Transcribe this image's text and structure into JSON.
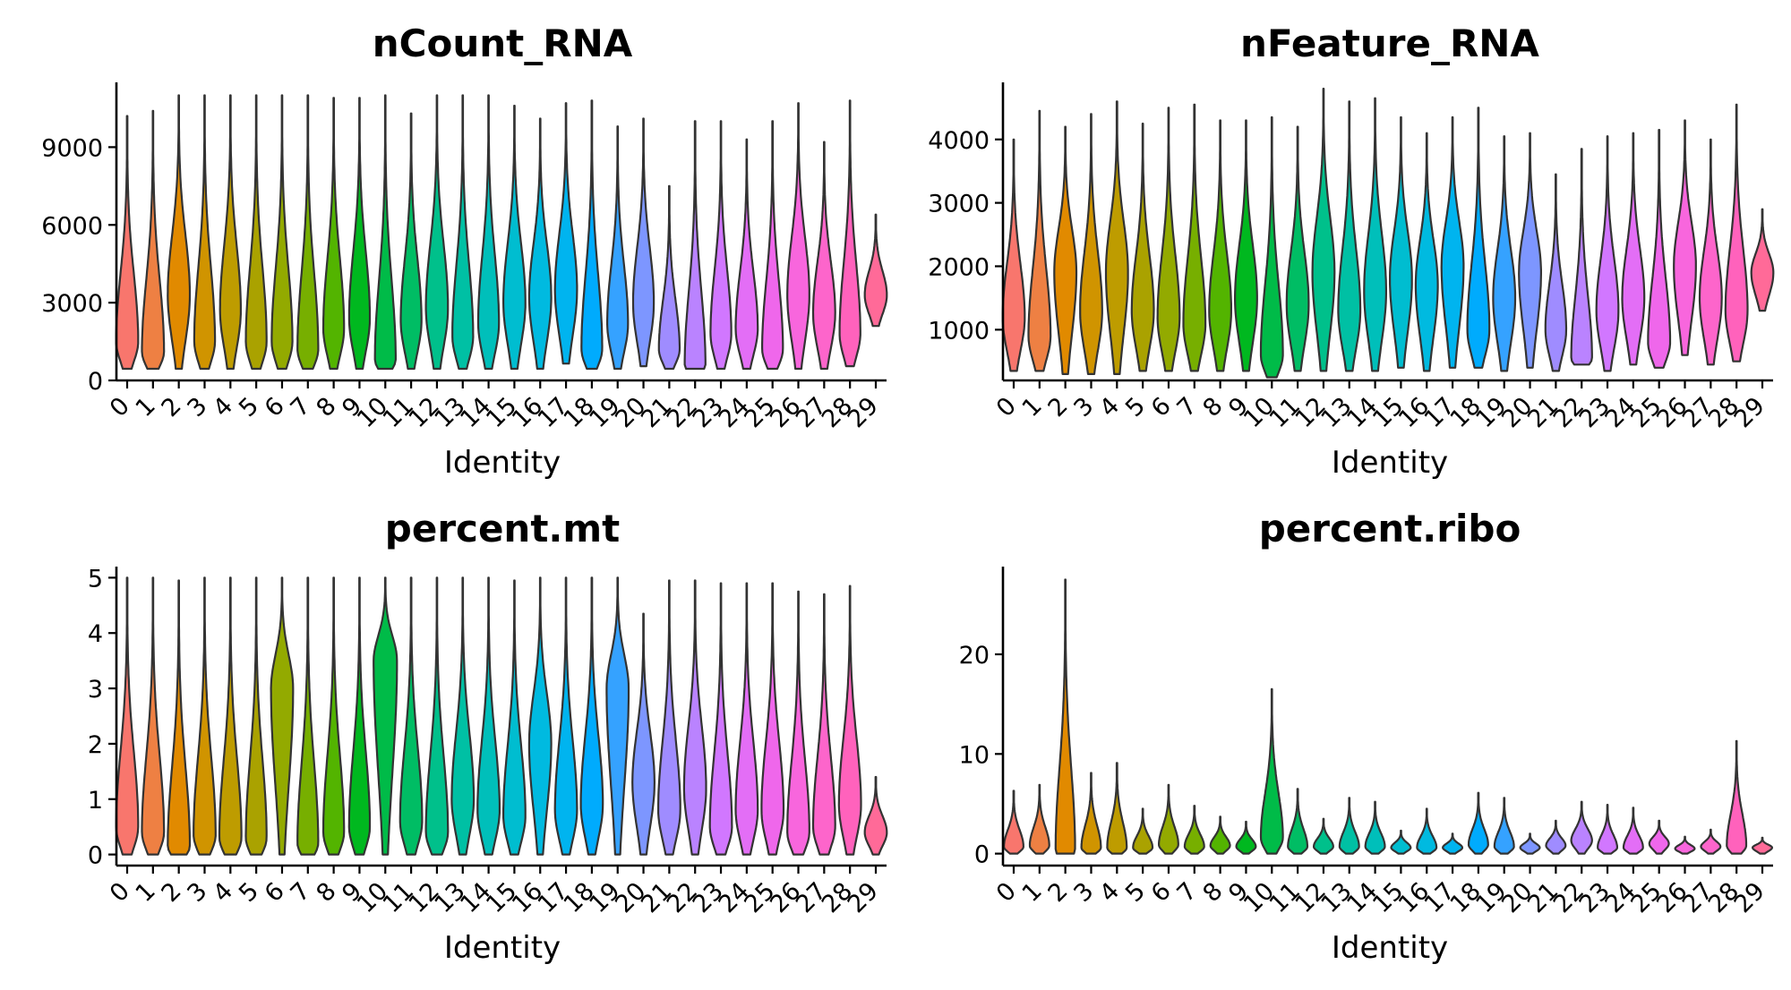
{
  "x_categories": [
    "0",
    "1",
    "2",
    "3",
    "4",
    "5",
    "6",
    "7",
    "8",
    "9",
    "10",
    "11",
    "12",
    "13",
    "14",
    "15",
    "16",
    "17",
    "18",
    "19",
    "20",
    "21",
    "22",
    "23",
    "24",
    "25",
    "26",
    "27",
    "28",
    "29"
  ],
  "colors": [
    "#F8766D",
    "#EE8043",
    "#E18A00",
    "#D09400",
    "#BE9C00",
    "#AAA200",
    "#93AA00",
    "#77AF00",
    "#53B400",
    "#00B81F",
    "#00BB48",
    "#00BD64",
    "#00C08B",
    "#00C0A4",
    "#00BFBA",
    "#00BDD0",
    "#00BAE0",
    "#00B4EF",
    "#00ABFD",
    "#35A2FF",
    "#7D96FF",
    "#9F8CFF",
    "#BA83FF",
    "#D177FF",
    "#E36EF6",
    "#EF67EB",
    "#F866DD",
    "#FD65CB",
    "#FF62BC",
    "#FF6A98"
  ],
  "chart_data": [
    {
      "type": "violin",
      "title": "nCount_RNA",
      "xlabel": "Identity",
      "ylabel": "",
      "ylim": [
        0,
        11500
      ],
      "yticks": [
        0,
        3000,
        6000,
        9000
      ],
      "series": [
        {
          "category": "0",
          "min": 450,
          "max": 10200,
          "peak": 1500,
          "pwidth": 0.85
        },
        {
          "category": "1",
          "min": 450,
          "max": 10400,
          "peak": 1100,
          "pwidth": 0.85
        },
        {
          "category": "2",
          "min": 450,
          "max": 11000,
          "peak": 3300,
          "pwidth": 0.85
        },
        {
          "category": "3",
          "min": 450,
          "max": 11000,
          "peak": 1500,
          "pwidth": 0.8
        },
        {
          "category": "4",
          "min": 450,
          "max": 11000,
          "peak": 2700,
          "pwidth": 0.8
        },
        {
          "category": "5",
          "min": 450,
          "max": 11000,
          "peak": 1500,
          "pwidth": 0.8
        },
        {
          "category": "6",
          "min": 450,
          "max": 11000,
          "peak": 1500,
          "pwidth": 0.8
        },
        {
          "category": "7",
          "min": 450,
          "max": 11000,
          "peak": 1200,
          "pwidth": 0.8
        },
        {
          "category": "8",
          "min": 450,
          "max": 10900,
          "peak": 2000,
          "pwidth": 0.8
        },
        {
          "category": "9",
          "min": 450,
          "max": 10900,
          "peak": 2400,
          "pwidth": 0.8
        },
        {
          "category": "10",
          "min": 450,
          "max": 11000,
          "peak": 800,
          "pwidth": 0.8
        },
        {
          "category": "11",
          "min": 450,
          "max": 10300,
          "peak": 2300,
          "pwidth": 0.8
        },
        {
          "category": "12",
          "min": 450,
          "max": 11000,
          "peak": 2800,
          "pwidth": 0.85
        },
        {
          "category": "13",
          "min": 450,
          "max": 11000,
          "peak": 1700,
          "pwidth": 0.8
        },
        {
          "category": "14",
          "min": 450,
          "max": 11000,
          "peak": 2200,
          "pwidth": 0.8
        },
        {
          "category": "15",
          "min": 450,
          "max": 10600,
          "peak": 3000,
          "pwidth": 0.85
        },
        {
          "category": "16",
          "min": 450,
          "max": 10100,
          "peak": 3200,
          "pwidth": 0.85
        },
        {
          "category": "17",
          "min": 650,
          "max": 10700,
          "peak": 3500,
          "pwidth": 0.85
        },
        {
          "category": "18",
          "min": 450,
          "max": 10800,
          "peak": 1200,
          "pwidth": 0.8
        },
        {
          "category": "19",
          "min": 450,
          "max": 9800,
          "peak": 2200,
          "pwidth": 0.8
        },
        {
          "category": "20",
          "min": 550,
          "max": 10100,
          "peak": 3000,
          "pwidth": 0.8
        },
        {
          "category": "21",
          "min": 450,
          "max": 7500,
          "peak": 1200,
          "pwidth": 0.8
        },
        {
          "category": "22",
          "min": 450,
          "max": 10000,
          "peak": 600,
          "pwidth": 0.8
        },
        {
          "category": "23",
          "min": 450,
          "max": 10000,
          "peak": 1800,
          "pwidth": 0.8
        },
        {
          "category": "24",
          "min": 450,
          "max": 9300,
          "peak": 2000,
          "pwidth": 0.85
        },
        {
          "category": "25",
          "min": 450,
          "max": 10000,
          "peak": 1200,
          "pwidth": 0.8
        },
        {
          "category": "26",
          "min": 450,
          "max": 10700,
          "peak": 3300,
          "pwidth": 0.85
        },
        {
          "category": "27",
          "min": 450,
          "max": 9200,
          "peak": 2600,
          "pwidth": 0.85
        },
        {
          "category": "28",
          "min": 550,
          "max": 10800,
          "peak": 1800,
          "pwidth": 0.8
        },
        {
          "category": "29",
          "min": 2100,
          "max": 6400,
          "peak": 3300,
          "pwidth": 0.85
        }
      ]
    },
    {
      "type": "violin",
      "title": "nFeature_RNA",
      "xlabel": "Identity",
      "ylabel": "",
      "ylim": [
        200,
        4900
      ],
      "yticks": [
        1000,
        2000,
        3000,
        4000
      ],
      "series": [
        {
          "category": "0",
          "min": 350,
          "max": 4000,
          "peak": 1200,
          "pwidth": 0.85
        },
        {
          "category": "1",
          "min": 350,
          "max": 4450,
          "peak": 900,
          "pwidth": 0.85
        },
        {
          "category": "2",
          "min": 300,
          "max": 4200,
          "peak": 1900,
          "pwidth": 0.85
        },
        {
          "category": "3",
          "min": 300,
          "max": 4400,
          "peak": 1300,
          "pwidth": 0.85
        },
        {
          "category": "4",
          "min": 300,
          "max": 4600,
          "peak": 1900,
          "pwidth": 0.85
        },
        {
          "category": "5",
          "min": 350,
          "max": 4250,
          "peak": 1300,
          "pwidth": 0.85
        },
        {
          "category": "6",
          "min": 350,
          "max": 4500,
          "peak": 1200,
          "pwidth": 0.85
        },
        {
          "category": "7",
          "min": 350,
          "max": 4550,
          "peak": 1100,
          "pwidth": 0.85
        },
        {
          "category": "8",
          "min": 350,
          "max": 4300,
          "peak": 1300,
          "pwidth": 0.85
        },
        {
          "category": "9",
          "min": 350,
          "max": 4300,
          "peak": 1500,
          "pwidth": 0.85
        },
        {
          "category": "10",
          "min": 250,
          "max": 4350,
          "peak": 600,
          "pwidth": 0.85
        },
        {
          "category": "11",
          "min": 350,
          "max": 4200,
          "peak": 1400,
          "pwidth": 0.85
        },
        {
          "category": "12",
          "min": 350,
          "max": 4800,
          "peak": 1900,
          "pwidth": 0.85
        },
        {
          "category": "13",
          "min": 350,
          "max": 4600,
          "peak": 1300,
          "pwidth": 0.85
        },
        {
          "category": "14",
          "min": 350,
          "max": 4650,
          "peak": 1600,
          "pwidth": 0.85
        },
        {
          "category": "15",
          "min": 400,
          "max": 4350,
          "peak": 1800,
          "pwidth": 0.85
        },
        {
          "category": "16",
          "min": 350,
          "max": 4100,
          "peak": 1700,
          "pwidth": 0.85
        },
        {
          "category": "17",
          "min": 400,
          "max": 4350,
          "peak": 2000,
          "pwidth": 0.85
        },
        {
          "category": "18",
          "min": 400,
          "max": 4500,
          "peak": 1000,
          "pwidth": 0.85
        },
        {
          "category": "19",
          "min": 350,
          "max": 4050,
          "peak": 1500,
          "pwidth": 0.85
        },
        {
          "category": "20",
          "min": 400,
          "max": 4100,
          "peak": 1900,
          "pwidth": 0.85
        },
        {
          "category": "21",
          "min": 350,
          "max": 3450,
          "peak": 1000,
          "pwidth": 0.8
        },
        {
          "category": "22",
          "min": 450,
          "max": 3850,
          "peak": 550,
          "pwidth": 0.8
        },
        {
          "category": "23",
          "min": 350,
          "max": 4050,
          "peak": 1300,
          "pwidth": 0.85
        },
        {
          "category": "24",
          "min": 450,
          "max": 4100,
          "peak": 1500,
          "pwidth": 0.85
        },
        {
          "category": "25",
          "min": 400,
          "max": 4150,
          "peak": 800,
          "pwidth": 0.85
        },
        {
          "category": "26",
          "min": 600,
          "max": 4300,
          "peak": 2000,
          "pwidth": 0.85
        },
        {
          "category": "27",
          "min": 450,
          "max": 4000,
          "peak": 1500,
          "pwidth": 0.85
        },
        {
          "category": "28",
          "min": 500,
          "max": 4550,
          "peak": 1300,
          "pwidth": 0.85
        },
        {
          "category": "29",
          "min": 1300,
          "max": 2900,
          "peak": 1900,
          "pwidth": 0.85
        }
      ]
    },
    {
      "type": "violin",
      "title": "percent.mt",
      "xlabel": "Identity",
      "ylabel": "",
      "ylim": [
        -0.2,
        5.2
      ],
      "yticks": [
        0,
        1,
        2,
        3,
        4,
        5
      ],
      "series": [
        {
          "category": "0",
          "min": 0,
          "max": 5,
          "peak": 0.5,
          "pwidth": 0.85
        },
        {
          "category": "1",
          "min": 0,
          "max": 5,
          "peak": 0.4,
          "pwidth": 0.85
        },
        {
          "category": "2",
          "min": 0,
          "max": 4.95,
          "peak": 0.15,
          "pwidth": 0.85
        },
        {
          "category": "3",
          "min": 0,
          "max": 5,
          "peak": 0.35,
          "pwidth": 0.85
        },
        {
          "category": "4",
          "min": 0,
          "max": 5,
          "peak": 0.3,
          "pwidth": 0.85
        },
        {
          "category": "5",
          "min": 0,
          "max": 5,
          "peak": 0.3,
          "pwidth": 0.8
        },
        {
          "category": "6",
          "min": 0,
          "max": 5,
          "peak": 3.0,
          "pwidth": 0.85
        },
        {
          "category": "7",
          "min": 0,
          "max": 5,
          "peak": 0.2,
          "pwidth": 0.8
        },
        {
          "category": "8",
          "min": 0,
          "max": 5,
          "peak": 0.4,
          "pwidth": 0.8
        },
        {
          "category": "9",
          "min": 0,
          "max": 5,
          "peak": 0.5,
          "pwidth": 0.8
        },
        {
          "category": "10",
          "min": 0,
          "max": 5,
          "peak": 3.5,
          "pwidth": 0.9
        },
        {
          "category": "11",
          "min": 0,
          "max": 5,
          "peak": 0.6,
          "pwidth": 0.85
        },
        {
          "category": "12",
          "min": 0,
          "max": 5,
          "peak": 0.4,
          "pwidth": 0.85
        },
        {
          "category": "13",
          "min": 0,
          "max": 5,
          "peak": 1.0,
          "pwidth": 0.85
        },
        {
          "category": "14",
          "min": 0,
          "max": 5,
          "peak": 0.8,
          "pwidth": 0.85
        },
        {
          "category": "15",
          "min": 0,
          "max": 4.95,
          "peak": 0.7,
          "pwidth": 0.85
        },
        {
          "category": "16",
          "min": 0,
          "max": 5,
          "peak": 2.0,
          "pwidth": 0.85
        },
        {
          "category": "17",
          "min": 0,
          "max": 5,
          "peak": 0.8,
          "pwidth": 0.85
        },
        {
          "category": "18",
          "min": 0,
          "max": 5,
          "peak": 0.9,
          "pwidth": 0.85
        },
        {
          "category": "19",
          "min": 0,
          "max": 5,
          "peak": 3.0,
          "pwidth": 0.85
        },
        {
          "category": "20",
          "min": 0,
          "max": 4.35,
          "peak": 1.3,
          "pwidth": 0.85
        },
        {
          "category": "21",
          "min": 0,
          "max": 4.95,
          "peak": 0.8,
          "pwidth": 0.85
        },
        {
          "category": "22",
          "min": 0,
          "max": 4.95,
          "peak": 1.2,
          "pwidth": 0.85
        },
        {
          "category": "23",
          "min": 0,
          "max": 4.9,
          "peak": 0.5,
          "pwidth": 0.85
        },
        {
          "category": "24",
          "min": 0,
          "max": 4.9,
          "peak": 0.8,
          "pwidth": 0.85
        },
        {
          "category": "25",
          "min": 0,
          "max": 4.9,
          "peak": 0.8,
          "pwidth": 0.85
        },
        {
          "category": "26",
          "min": 0,
          "max": 4.75,
          "peak": 0.4,
          "pwidth": 0.85
        },
        {
          "category": "27",
          "min": 0,
          "max": 4.7,
          "peak": 0.5,
          "pwidth": 0.85
        },
        {
          "category": "28",
          "min": 0,
          "max": 4.85,
          "peak": 0.9,
          "pwidth": 0.85
        },
        {
          "category": "29",
          "min": 0,
          "max": 1.4,
          "peak": 0.4,
          "pwidth": 0.85
        }
      ]
    },
    {
      "type": "violin",
      "title": "percent.ribo",
      "xlabel": "Identity",
      "ylabel": "",
      "ylim": [
        -1.2,
        28.8
      ],
      "yticks": [
        0,
        10,
        20
      ],
      "series": [
        {
          "category": "0",
          "min": 0,
          "max": 6.3,
          "peak": 0.7,
          "pwidth": 0.75
        },
        {
          "category": "1",
          "min": 0,
          "max": 6.9,
          "peak": 0.8,
          "pwidth": 0.75
        },
        {
          "category": "2",
          "min": 0,
          "max": 27.5,
          "peak": 0.4,
          "pwidth": 0.75
        },
        {
          "category": "3",
          "min": 0,
          "max": 8.1,
          "peak": 0.6,
          "pwidth": 0.75
        },
        {
          "category": "4",
          "min": 0,
          "max": 9.1,
          "peak": 0.6,
          "pwidth": 0.75
        },
        {
          "category": "5",
          "min": 0,
          "max": 4.5,
          "peak": 0.6,
          "pwidth": 0.75
        },
        {
          "category": "6",
          "min": 0,
          "max": 6.9,
          "peak": 0.9,
          "pwidth": 0.75
        },
        {
          "category": "7",
          "min": 0,
          "max": 4.8,
          "peak": 0.7,
          "pwidth": 0.75
        },
        {
          "category": "8",
          "min": 0,
          "max": 3.7,
          "peak": 0.8,
          "pwidth": 0.75
        },
        {
          "category": "9",
          "min": 0,
          "max": 3.2,
          "peak": 0.7,
          "pwidth": 0.75
        },
        {
          "category": "10",
          "min": 0,
          "max": 16.5,
          "peak": 1.6,
          "pwidth": 0.85
        },
        {
          "category": "11",
          "min": 0,
          "max": 6.5,
          "peak": 0.7,
          "pwidth": 0.75
        },
        {
          "category": "12",
          "min": 0,
          "max": 3.5,
          "peak": 0.7,
          "pwidth": 0.75
        },
        {
          "category": "13",
          "min": 0,
          "max": 5.6,
          "peak": 0.7,
          "pwidth": 0.75
        },
        {
          "category": "14",
          "min": 0,
          "max": 5.2,
          "peak": 0.7,
          "pwidth": 0.75
        },
        {
          "category": "15",
          "min": 0,
          "max": 2.3,
          "peak": 0.6,
          "pwidth": 0.75
        },
        {
          "category": "16",
          "min": 0,
          "max": 4.5,
          "peak": 0.6,
          "pwidth": 0.75
        },
        {
          "category": "17",
          "min": 0,
          "max": 2.0,
          "peak": 0.6,
          "pwidth": 0.75
        },
        {
          "category": "18",
          "min": 0,
          "max": 6.1,
          "peak": 0.9,
          "pwidth": 0.75
        },
        {
          "category": "19",
          "min": 0,
          "max": 5.6,
          "peak": 0.7,
          "pwidth": 0.75
        },
        {
          "category": "20",
          "min": 0,
          "max": 2.0,
          "peak": 0.6,
          "pwidth": 0.75
        },
        {
          "category": "21",
          "min": 0,
          "max": 3.3,
          "peak": 0.8,
          "pwidth": 0.75
        },
        {
          "category": "22",
          "min": 0,
          "max": 5.2,
          "peak": 1.3,
          "pwidth": 0.8
        },
        {
          "category": "23",
          "min": 0,
          "max": 4.9,
          "peak": 0.6,
          "pwidth": 0.75
        },
        {
          "category": "24",
          "min": 0,
          "max": 4.6,
          "peak": 0.6,
          "pwidth": 0.75
        },
        {
          "category": "25",
          "min": 0,
          "max": 3.3,
          "peak": 1.0,
          "pwidth": 0.75
        },
        {
          "category": "26",
          "min": 0,
          "max": 1.7,
          "peak": 0.5,
          "pwidth": 0.75
        },
        {
          "category": "27",
          "min": 0,
          "max": 2.4,
          "peak": 0.7,
          "pwidth": 0.75
        },
        {
          "category": "28",
          "min": 0,
          "max": 11.3,
          "peak": 0.8,
          "pwidth": 0.75
        },
        {
          "category": "29",
          "min": 0,
          "max": 1.6,
          "peak": 0.6,
          "pwidth": 0.75
        }
      ]
    }
  ]
}
